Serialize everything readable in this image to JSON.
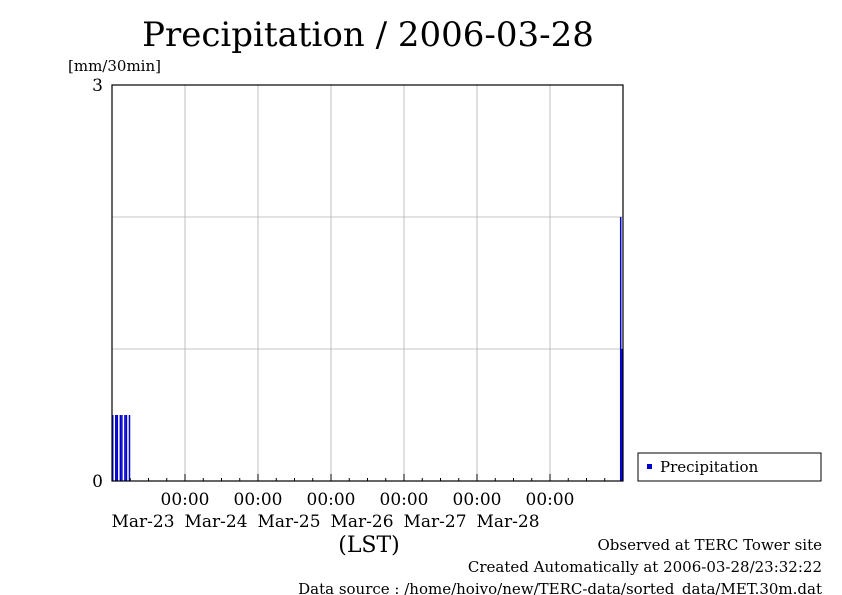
{
  "chart_data": {
    "type": "bar",
    "title": "Precipitation / 2006-03-28",
    "ylabel": "[mm/30min]",
    "xlabel": "(LST)",
    "ylim": [
      0,
      3
    ],
    "y_ticks": [
      {
        "value": 0,
        "label": "0"
      },
      {
        "value": 3,
        "label": "3"
      }
    ],
    "y_gridlines": [
      1,
      2
    ],
    "x_range": [
      "2006-03-22 00:00",
      "2006-03-29 00:00"
    ],
    "x_ticks": [
      {
        "time": "2006-03-23 00:00",
        "time_label": "00:00",
        "date_label": "Mar-23"
      },
      {
        "time": "2006-03-24 00:00",
        "time_label": "00:00",
        "date_label": "Mar-24"
      },
      {
        "time": "2006-03-25 00:00",
        "time_label": "00:00",
        "date_label": "Mar-25"
      },
      {
        "time": "2006-03-26 00:00",
        "time_label": "00:00",
        "date_label": "Mar-26"
      },
      {
        "time": "2006-03-27 00:00",
        "time_label": "00:00",
        "date_label": "Mar-27"
      },
      {
        "time": "2006-03-28 00:00",
        "time_label": "00:00",
        "date_label": "Mar-28"
      }
    ],
    "grid": true,
    "legend_position": "right",
    "series": [
      {
        "name": "Precipitation",
        "color": "#0000cc",
        "points": [
          {
            "x": "2006-03-22 00:00",
            "y": 0.5
          },
          {
            "x": "2006-03-22 01:00",
            "y": 0.5
          },
          {
            "x": "2006-03-22 01:30",
            "y": 0.5
          },
          {
            "x": "2006-03-22 02:30",
            "y": 0.5
          },
          {
            "x": "2006-03-22 03:00",
            "y": 0.5
          },
          {
            "x": "2006-03-22 04:00",
            "y": 0.5
          },
          {
            "x": "2006-03-22 04:30",
            "y": 0.5
          },
          {
            "x": "2006-03-22 05:30",
            "y": 0.5
          },
          {
            "x": "2006-03-28 23:00",
            "y": 2.0
          },
          {
            "x": "2006-03-28 23:30",
            "y": 1.0
          }
        ]
      }
    ]
  },
  "footer": {
    "observed": "Observed at TERC Tower site",
    "created": "Created Automatically at 2006-03-28/23:32:22",
    "source": "Data source : /home/hoivo/new/TERC-data/sorted_data/MET.30m.dat"
  }
}
